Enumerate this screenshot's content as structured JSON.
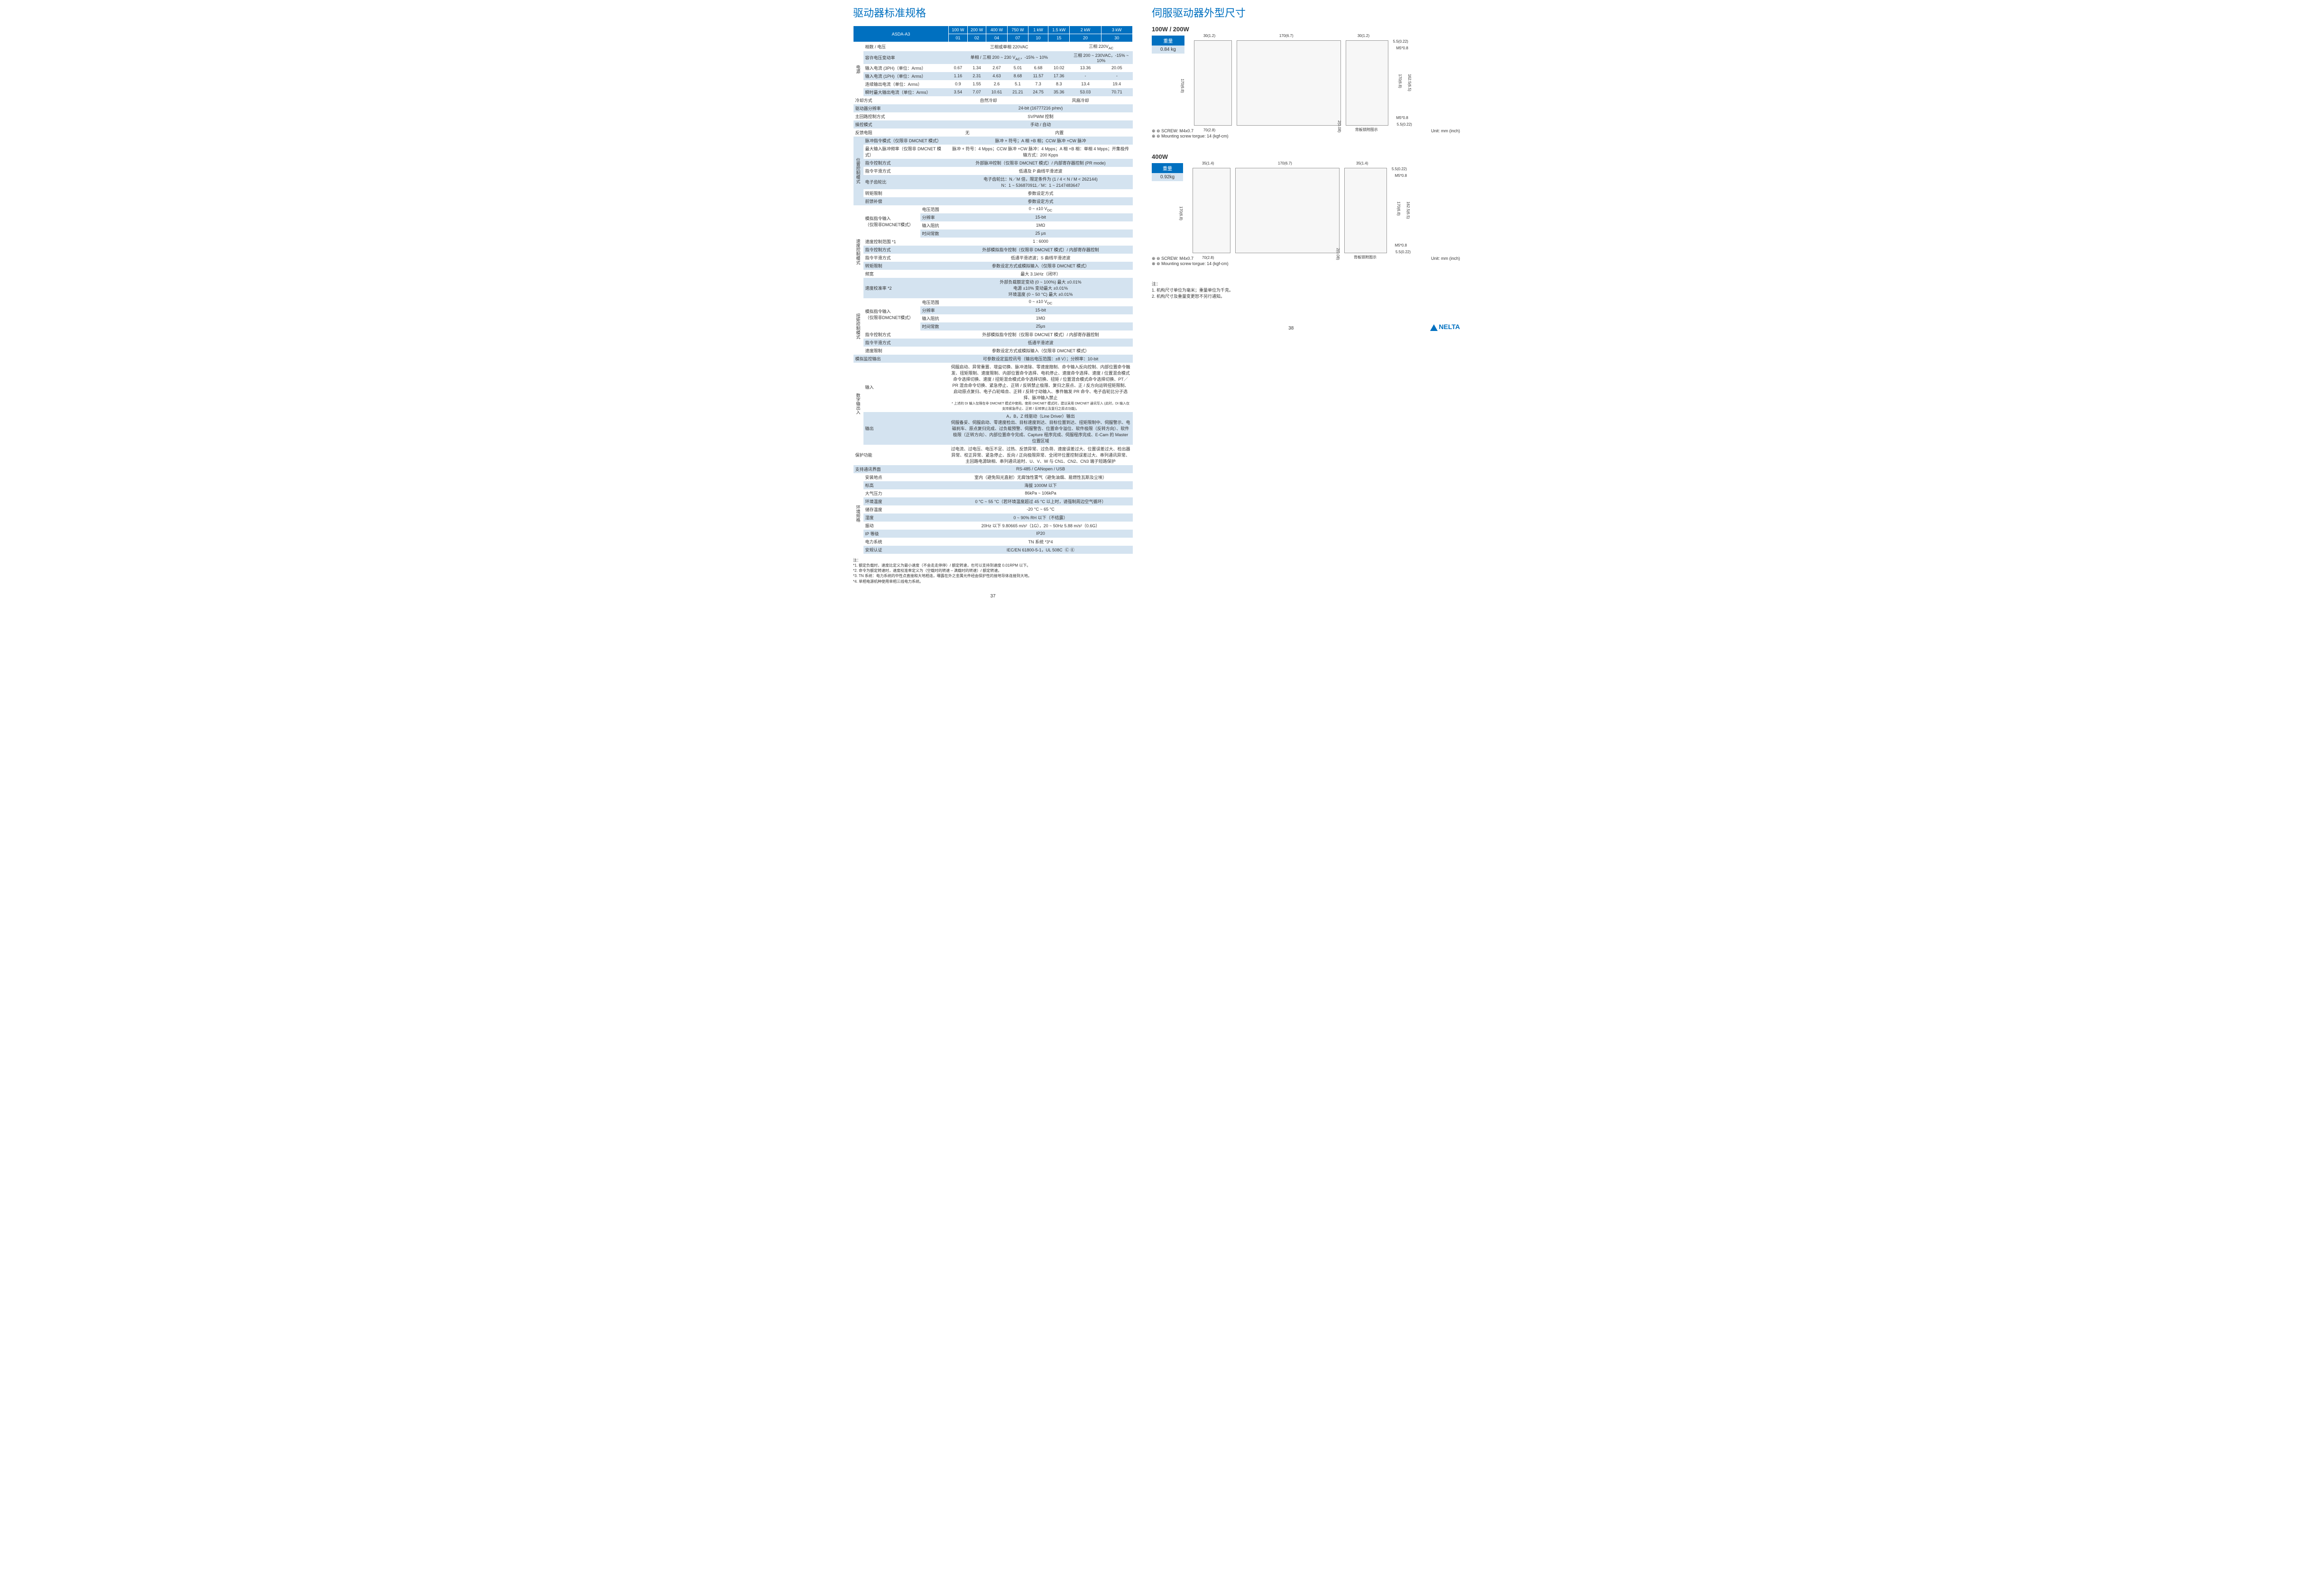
{
  "left": {
    "title": "驱动器标准规格",
    "header": {
      "model": "ASDA-A3",
      "powers": [
        "100 W",
        "200 W",
        "400 W",
        "750 W",
        "1 kW",
        "1.5 kW",
        "2 kW",
        "3 kW"
      ],
      "codes": [
        "01",
        "02",
        "04",
        "07",
        "10",
        "15",
        "20",
        "30"
      ]
    },
    "power_section": {
      "side": "电源",
      "rows": [
        {
          "label": "相数 / 电压",
          "type": "split",
          "left": "三相或单相 220VAC",
          "leftspan": 6,
          "right": "三相 220V<sub>AC</sub>",
          "rightspan": 2,
          "alt": false
        },
        {
          "label": "容许电压变动率",
          "type": "split",
          "left": "单相 / 三相 200 ~ 230 V<sub>AC</sub>，-15% ~ 10%",
          "leftspan": 6,
          "right": "三相 200 ~ 230VAC，-15% ~ 10%",
          "rightspan": 2,
          "alt": true
        },
        {
          "label": "输入电流 (3PH)（单位：Arms）",
          "vals": [
            "0.67",
            "1.34",
            "2.67",
            "5.01",
            "6.68",
            "10.02",
            "13.36",
            "20.05"
          ],
          "alt": false
        },
        {
          "label": "输入电流 (1PH)（单位：Arms）",
          "vals": [
            "1.16",
            "2.31",
            "4.63",
            "8.68",
            "11.57",
            "17.36",
            "-",
            "-"
          ],
          "alt": true
        },
        {
          "label": "连续输出电流（单位：Arms）",
          "vals": [
            "0.9",
            "1.55",
            "2.6",
            "5.1",
            "7.3",
            "8.3",
            "13.4",
            "19.4"
          ],
          "alt": false
        },
        {
          "label": "瞬时最大输出电流（单位：Arms）",
          "vals": [
            "3.54",
            "7.07",
            "10.61",
            "21.21",
            "24.75",
            "35.36",
            "53.03",
            "70.71"
          ],
          "alt": true
        }
      ]
    },
    "basic_rows": [
      {
        "label": "冷却方式",
        "type": "split",
        "left": "自然冷却",
        "leftspan": 4,
        "right": "风扇冷却",
        "rightspan": 4,
        "alt": false
      },
      {
        "label": "驱动器分辨率",
        "val": "24-bit (16777216 p/rev)",
        "alt": true
      },
      {
        "label": "主回路控制方式",
        "val": "SVPWM 控制",
        "alt": false
      },
      {
        "label": "操控模式",
        "val": "手动 / 自动",
        "alt": true
      },
      {
        "label": "反馈电阻",
        "type": "split",
        "left": "无",
        "leftspan": 2,
        "right": "内置",
        "rightspan": 6,
        "alt": false
      }
    ],
    "position_section": {
      "side": "位置控制模式",
      "rows": [
        {
          "label": "脉冲指令模式（仅限非 DMCNET 模式）",
          "val": "脉冲 + 符号；A 相 +B 相；CCW 脉冲 +CW 脉冲",
          "alt": true
        },
        {
          "label": "最大输入脉冲频率（仅限非 DMCNET 模式）",
          "val": "脉冲 + 符号：4 Mpps；CCW 脉冲 +CW 脉冲：4 Mpps；A 相 +B 相：单相 4 Mpps；开集极传输方式：200 Kpps",
          "alt": false
        },
        {
          "label": "指令控制方式",
          "val": "外部脉冲控制（仅限非 DMCNET 模式）/ 内部寄存器控制 (PR mode)",
          "alt": true
        },
        {
          "label": "指令平滑方式",
          "val": "低通及 P 曲线平滑滤波",
          "alt": false
        },
        {
          "label": "电子齿轮比",
          "val": "电子齿轮比：N／M 倍，限定条件为 (1 / 4 < N / M < 262144)<br>N：1 ~ 536870911／M：1 ~ 2147483647",
          "alt": true
        },
        {
          "label": "转矩限制",
          "val": "参数设定方式",
          "alt": false
        },
        {
          "label": "前馈补偿",
          "val": "参数设定方式",
          "alt": true
        }
      ]
    },
    "speed_section": {
      "side": "速度控制模式",
      "analog": {
        "label": "模拟指令输入<br>（仅限非DMCNET模式）",
        "sub": [
          {
            "k": "电压范围",
            "v": "0 ~ ±10 V<sub>DC</sub>",
            "alt": false
          },
          {
            "k": "分辨率",
            "v": "15-bit",
            "alt": true
          },
          {
            "k": "输入阻抗",
            "v": "1MΩ",
            "alt": false
          },
          {
            "k": "时间常数",
            "v": "25 μs",
            "alt": true
          }
        ]
      },
      "rows": [
        {
          "label": "速度控制范围 *1",
          "val": "1 : 6000",
          "alt": false
        },
        {
          "label": "指令控制方式",
          "val": "外部模拟指令控制（仅限非 DMCNET 模式）/ 内部寄存器控制",
          "alt": true
        },
        {
          "label": "指令平滑方式",
          "val": "低通平滑滤波；S 曲线平滑滤波",
          "alt": false
        },
        {
          "label": "转矩限制",
          "val": "参数设定方式或模拟输入（仅限非 DMCNET 模式）",
          "alt": true
        },
        {
          "label": "频宽",
          "val": "最大 3.1kHz（闭环）",
          "alt": false
        },
        {
          "label": "速度校准率 *2",
          "val": "外部负载额定变动 (0 ~ 100%) 最大 ±0.01%<br>电源 ±10% 变动最大 ±0.01%<br>环境温度 (0 ~ 50 °C) 最大 ±0.01%",
          "alt": true
        }
      ]
    },
    "torque_section": {
      "side": "扭矩控制模式",
      "analog": {
        "label": "模拟指令输入<br>（仅限非DMCNET模式）",
        "sub": [
          {
            "k": "电压范围",
            "v": "0 ~ ±10 V<sub>DC</sub>",
            "alt": false
          },
          {
            "k": "分辨率",
            "v": "15-bit",
            "alt": true
          },
          {
            "k": "输入阻抗",
            "v": "1MΩ",
            "alt": false
          },
          {
            "k": "时间常数",
            "v": "25μs",
            "alt": true
          }
        ]
      },
      "rows": [
        {
          "label": "指令控制方式",
          "val": "外部模拟指令控制（仅限非 DMCNET 模式）/ 内部寄存器控制",
          "alt": false
        },
        {
          "label": "指令平滑方式",
          "val": "低通平滑滤波",
          "alt": true
        },
        {
          "label": "速度限制",
          "val": "参数设定方式或模拟输入（仅限非 DMCNET 模式）",
          "alt": false
        }
      ]
    },
    "analog_monitor": {
      "label": "模拟监控输出",
      "val": "可参数设定监控讯号（输出电压范围：±8 V）；分辨率：10-bit",
      "alt": true
    },
    "io_section": {
      "side": "数字输出入",
      "rows": [
        {
          "label": "输入",
          "val": "伺服启动、异常重置、增益切换、脉冲清除、零速度箝制、命令输入反向控制、内部位置命令触发、扭矩限制、速度限制、内部位置命令选择、电机停止、速度命令选择、速度 / 位置混合模式命令选择切换、速度 / 扭矩混合模式命令选择切换、扭矩 / 位置混合模式命令选择切换、PT／PR 混合命令切换、紧急停止、正转 / 反转禁止极限、复归之原点、正 / 反方向运转扭矩限制、启动原点复归、电子凸轮啮合、正转 / 反转寸动输入、事件触发 PR 命令、电子齿轮比分子选择、脉冲输入禁止<br><span style='font-size:7px'>* 上述的 DI 输入仅限在非 DMCNET 模式中使用。使用 DMCNET 模式时，建议采用 DMCNET 通讯写入 (此时，DI 输入仅支持紧急停止、正转 / 反转禁止及复归之原点功能)。</span>",
          "alt": false
        },
        {
          "label": "输出",
          "val": "A，B，Z 线驱动（Line Driver）输出<br>伺服备妥、伺服启动、零速度检出、目标速度到达、目标位置到达、扭矩限制中、伺服警示、电磁刹车、原点复归完成、过负载预警、伺服警告、位置命令溢位、软件极限（反转方向）、软件极限（正转方向）、内部位置命令完成、Capture 程序完成、伺服程序完成、E-Cam 的 Master 位置区域",
          "alt": true
        }
      ]
    },
    "protection": {
      "label": "保护功能",
      "val": "过电流、过电压、电压不足、过热、反馈异常、过负荷、速度误差过大、位置误差过大、检出器异常、校正异常、紧急停止、反向 / 正向极限异常、全闭环位置控制误差过大、串列通讯异常、主回路电源缺相、串列通讯逾时、U、V、W 与 CN1、CN2、CN3 端子短路保护",
      "alt": false
    },
    "comm": {
      "label": "支持通讯界面",
      "val": "RS-485 / CANopen / USB",
      "alt": true
    },
    "env_section": {
      "side": "环境规格",
      "rows": [
        {
          "label": "安装地点",
          "val": "室内（避免阳光直射）无腐蚀性雾气（避免油烟、易燃性瓦斯及尘埃）",
          "alt": false
        },
        {
          "label": "标高",
          "val": "海拔 1000M 以下",
          "alt": true
        },
        {
          "label": "大气压力",
          "val": "86kPa ~ 106kPa",
          "alt": false
        },
        {
          "label": "环境温度",
          "val": "0 °C ~ 55 °C（若环境温度超过 45 °C 以上时，请强制周边空气循环）",
          "alt": true
        },
        {
          "label": "储存温度",
          "val": "-20 °C ~ 65 °C",
          "alt": false
        },
        {
          "label": "湿度",
          "val": "0 ~ 90% RH 以下（不结露）",
          "alt": true
        },
        {
          "label": "振动",
          "val": "20Hz 以下 9.80665 m/s²（1G），20 ~ 50Hz 5.88 m/s²（0.6G）",
          "alt": false
        },
        {
          "label": "IP 等级",
          "val": "IP20",
          "alt": true
        },
        {
          "label": "电力系统",
          "val": "TN 系统 *3*4",
          "alt": false
        },
        {
          "label": "安规认证",
          "val": "IEC/EN 61800-5-1，UL 508C &nbsp;Ⓒ Ⓔ",
          "alt": true
        }
      ]
    },
    "notes_title": "注：",
    "notes": [
      "*1. 额定负载时，速度比定义为最小速度（不会走走停停）/ 额定转速，也可以支持到速度 0.01RPM 以下。",
      "*2. 命令为额定转速时，速度校准率定义为（空载时的转速 – 满载时的转速）/ 额定转速。",
      "*3. TN 系统：电力系统的中性点直接和大地相连，曝露在外之金属元件经由保护性的接地导体连接到大地。",
      "*4. 单相电源机种使用单相三线电力系统。"
    ],
    "page": "37"
  },
  "right": {
    "title": "伺服驱动器外型尺寸",
    "sections": [
      {
        "title": "100W / 200W",
        "weight_hdr": "重量",
        "weight": "0.84 kg",
        "dims": {
          "w1": "30(1.2)",
          "w2": "170(6.7)",
          "w3": "30(1.2)",
          "h1": "170(6.8)",
          "h2": "162.5(6.5)",
          "h3": "5.5(0.22)",
          "d1": "70(2.8)",
          "m1": "M5*0.8",
          "m2": "M5*0.8",
          "b": "2(0.08)",
          "bottom": "5.5(0.22)",
          "panel": "背板锁附图示"
        },
        "screw": "SCREW: M4x0.7",
        "torque": "Mounting screw torgue: 14 (kgf-cm)",
        "unit": "Unit: mm (inch)"
      },
      {
        "title": "400W",
        "weight_hdr": "重量",
        "weight": "0.92kg",
        "dims": {
          "w1": "35(1.4)",
          "w2": "170(6.7)",
          "w3": "35(1.4)",
          "h1": "170(6.8)",
          "h2": "162.5(6.5)",
          "h3": "5.5(0.22)",
          "d1": "70(2.8)",
          "m1": "M5*0.8",
          "m2": "M5*0.8",
          "b": "2(0.08)",
          "bottom": "5.5(0.22)",
          "panel": "背板锁附图示"
        },
        "screw": "SCREW: M4x0.7",
        "torque": "Mounting screw torgue: 14 (kgf-cm)",
        "unit": "Unit: mm (inch)"
      }
    ],
    "notes_title": "注：",
    "notes": [
      "1. 机构尺寸单位为毫米；重量单位为千克。",
      "2. 机构尺寸及重量变更恕不另行通知。"
    ],
    "page": "38",
    "logo": "NELTA"
  }
}
